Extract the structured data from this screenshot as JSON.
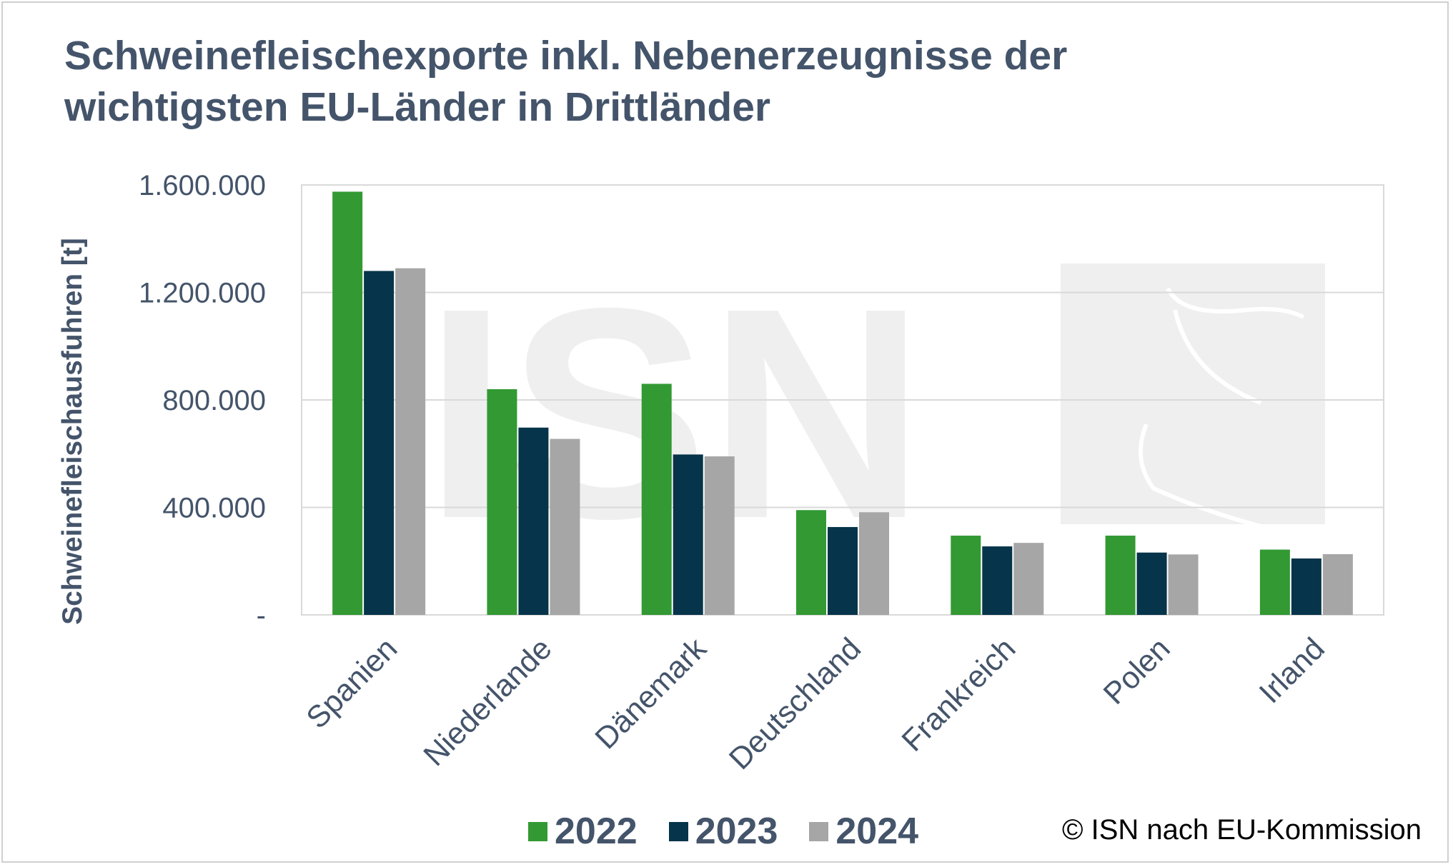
{
  "title": "Schweinefleischexporte inkl. Nebenerzeugnisse der\nwichtigsten EU-Länder in Drittländer",
  "source": "© ISN nach EU-Kommission",
  "watermark": "ISN",
  "colors": {
    "2022": "#339933",
    "2023": "#06344a",
    "2024": "#a6a6a6",
    "text": "#44546a",
    "grid": "#d9d9d9"
  },
  "chart_data": {
    "type": "bar",
    "title": "Schweinefleischexporte inkl. Nebenerzeugnisse der wichtigsten EU-Länder in Drittländer",
    "xlabel": "",
    "ylabel": "Schweinefleischausfuhren [t]",
    "ylim": [
      0,
      1600000
    ],
    "yticks": [
      0,
      400000,
      800000,
      1200000,
      1600000
    ],
    "ytick_labels": [
      "-",
      "400.000",
      "800.000",
      "1.200.000",
      "1.600.000"
    ],
    "categories": [
      "Spanien",
      "Niederlande",
      "Dänemark",
      "Deutschland",
      "Frankreich",
      "Polen",
      "Irland"
    ],
    "series": [
      {
        "name": "2022",
        "values": [
          1575000,
          840000,
          860000,
          390000,
          295000,
          295000,
          243000
        ]
      },
      {
        "name": "2023",
        "values": [
          1280000,
          697000,
          597000,
          327000,
          255000,
          232000,
          210000
        ]
      },
      {
        "name": "2024",
        "values": [
          1290000,
          655000,
          590000,
          382000,
          268000,
          225000,
          226000
        ]
      }
    ],
    "grid": true,
    "legend": "bottom"
  }
}
